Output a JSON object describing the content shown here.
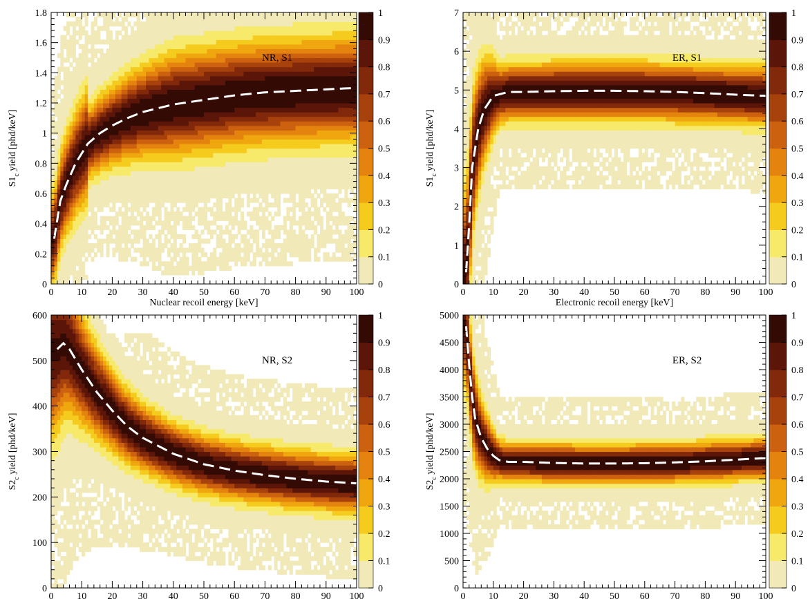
{
  "chart_data": [
    {
      "type": "heatmap",
      "annotation": "NR, S1",
      "xlabel": "Nuclear recoil energy [keV]",
      "ylabel_main": "S1",
      "ylabel_sub": "c",
      "ylabel_rest": " yield [phd/keV]",
      "xlim": [
        0,
        100
      ],
      "ylim": [
        0,
        1.8
      ],
      "xticks": [
        0,
        10,
        20,
        30,
        40,
        50,
        60,
        70,
        80,
        90,
        100
      ],
      "yticks": [
        "0",
        "0.2",
        "0.4",
        "0.6",
        "0.8",
        "1",
        "1.2",
        "1.4",
        "1.6",
        "1.8"
      ],
      "ytick_values": [
        0,
        0.2,
        0.4,
        0.6,
        0.8,
        1.0,
        1.2,
        1.4,
        1.6,
        1.8
      ],
      "colorbar_ticks": [
        "0",
        "0.1",
        "0.2",
        "0.3",
        "0.4",
        "0.5",
        "0.6",
        "0.7",
        "0.8",
        "0.9",
        "1"
      ],
      "colorbar_range": [
        0,
        1
      ],
      "band": {
        "kind": "saturating",
        "center_x": [
          1,
          3,
          5,
          8,
          12,
          16,
          20,
          25,
          30,
          40,
          50,
          60,
          70,
          80,
          90,
          100
        ],
        "center_y": [
          0.3,
          0.55,
          0.66,
          0.8,
          0.93,
          1.0,
          1.05,
          1.1,
          1.14,
          1.19,
          1.22,
          1.25,
          1.27,
          1.28,
          1.29,
          1.3
        ],
        "width_y": 0.16
      },
      "mean_curve": {
        "style": "white-dashed",
        "x": [
          1,
          3,
          5,
          8,
          12,
          16,
          20,
          25,
          30,
          40,
          50,
          60,
          70,
          80,
          90,
          100
        ],
        "y": [
          0.3,
          0.55,
          0.66,
          0.8,
          0.93,
          1.0,
          1.05,
          1.1,
          1.14,
          1.19,
          1.22,
          1.25,
          1.27,
          1.28,
          1.29,
          1.3
        ]
      }
    },
    {
      "type": "heatmap",
      "annotation": "ER, S1",
      "xlabel": "Electronic recoil energy [keV]",
      "ylabel_main": "S1",
      "ylabel_sub": "c",
      "ylabel_rest": " yield [phd/keV]",
      "xlim": [
        0,
        100
      ],
      "ylim": [
        0,
        7
      ],
      "xticks": [
        0,
        10,
        20,
        30,
        40,
        50,
        60,
        70,
        80,
        90,
        100
      ],
      "yticks": [
        "0",
        "1",
        "2",
        "3",
        "4",
        "5",
        "6",
        "7"
      ],
      "ytick_values": [
        0,
        1,
        2,
        3,
        4,
        5,
        6,
        7
      ],
      "colorbar_ticks": [
        "0",
        "0.1",
        "0.2",
        "0.3",
        "0.4",
        "0.5",
        "0.6",
        "0.7",
        "0.8",
        "0.9",
        "1"
      ],
      "colorbar_range": [
        0,
        1
      ],
      "band": {
        "kind": "flat",
        "center_x": [
          1,
          2,
          3,
          5,
          7,
          10,
          15,
          20,
          30,
          40,
          50,
          60,
          70,
          80,
          90,
          100
        ],
        "center_y": [
          0.3,
          1.5,
          3.0,
          4.0,
          4.5,
          4.85,
          4.95,
          4.95,
          4.97,
          4.98,
          4.98,
          4.97,
          4.95,
          4.92,
          4.88,
          4.85
        ],
        "width_y": 0.45
      },
      "mean_curve": {
        "style": "white-dashed",
        "x": [
          1,
          2,
          3,
          5,
          7,
          10,
          15,
          20,
          30,
          40,
          50,
          60,
          70,
          80,
          90,
          100
        ],
        "y": [
          0.3,
          1.5,
          3.0,
          4.0,
          4.5,
          4.85,
          4.95,
          4.95,
          4.97,
          4.98,
          4.98,
          4.97,
          4.95,
          4.92,
          4.88,
          4.85
        ]
      }
    },
    {
      "type": "heatmap",
      "annotation": "NR, S2",
      "xlabel": "Nuclear recoil energy [keV]",
      "ylabel_main": "S2",
      "ylabel_sub": "c",
      "ylabel_rest": " yield [phd/keV]",
      "xlim": [
        0,
        100
      ],
      "ylim": [
        0,
        600
      ],
      "xticks": [
        0,
        10,
        20,
        30,
        40,
        50,
        60,
        70,
        80,
        90,
        100
      ],
      "yticks": [
        "0",
        "100",
        "200",
        "300",
        "400",
        "500",
        "600"
      ],
      "ytick_values": [
        0,
        100,
        200,
        300,
        400,
        500,
        600
      ],
      "colorbar_ticks": [
        "0",
        "0.1",
        "0.2",
        "0.3",
        "0.4",
        "0.5",
        "0.6",
        "0.7",
        "0.8",
        "0.9",
        "1"
      ],
      "colorbar_range": [
        0,
        1
      ],
      "band": {
        "kind": "falling",
        "center_x": [
          2,
          4,
          6,
          10,
          15,
          20,
          25,
          30,
          40,
          50,
          60,
          70,
          80,
          90,
          100
        ],
        "center_y": [
          525,
          538,
          525,
          480,
          430,
          390,
          355,
          330,
          295,
          272,
          258,
          248,
          240,
          234,
          230
        ],
        "width_y": 38
      },
      "mean_curve": {
        "style": "white-dashed",
        "x": [
          2,
          4,
          6,
          10,
          15,
          20,
          25,
          30,
          40,
          50,
          60,
          70,
          80,
          90,
          100
        ],
        "y": [
          525,
          538,
          525,
          480,
          430,
          390,
          355,
          330,
          295,
          272,
          258,
          248,
          240,
          234,
          230
        ]
      }
    },
    {
      "type": "heatmap",
      "annotation": "ER, S2",
      "xlabel": "Electronic recoil energy [keV]",
      "ylabel_main": "S2",
      "ylabel_sub": "c",
      "ylabel_rest": " yield [phd/keV]",
      "xlim": [
        0,
        100
      ],
      "ylim": [
        0,
        5000
      ],
      "xticks": [
        0,
        10,
        20,
        30,
        40,
        50,
        60,
        70,
        80,
        90,
        100
      ],
      "yticks": [
        "0",
        "500",
        "1000",
        "1500",
        "2000",
        "2500",
        "3000",
        "3500",
        "4000",
        "4500",
        "5000"
      ],
      "ytick_values": [
        0,
        500,
        1000,
        1500,
        2000,
        2500,
        3000,
        3500,
        4000,
        4500,
        5000
      ],
      "colorbar_ticks": [
        "0",
        "0.1",
        "0.2",
        "0.3",
        "0.4",
        "0.5",
        "0.6",
        "0.7",
        "0.8",
        "0.9",
        "1"
      ],
      "colorbar_range": [
        0,
        1
      ],
      "band": {
        "kind": "flat",
        "center_x": [
          1,
          2,
          3,
          4,
          6,
          8,
          10,
          12,
          15,
          20,
          30,
          40,
          50,
          60,
          70,
          80,
          90,
          100
        ],
        "center_y": [
          4800,
          4100,
          3500,
          3100,
          2750,
          2550,
          2420,
          2340,
          2310,
          2310,
          2290,
          2280,
          2280,
          2285,
          2300,
          2320,
          2350,
          2380
        ],
        "width_y": 220
      },
      "mean_curve": {
        "style": "white-dashed",
        "x": [
          1,
          2,
          3,
          4,
          6,
          8,
          10,
          12,
          15,
          20,
          30,
          40,
          50,
          60,
          70,
          80,
          90,
          100
        ],
        "y": [
          4800,
          4100,
          3500,
          3100,
          2750,
          2550,
          2420,
          2340,
          2310,
          2310,
          2290,
          2280,
          2280,
          2285,
          2300,
          2320,
          2350,
          2380
        ]
      }
    }
  ],
  "colorscale": [
    "#f1eab8",
    "#f7e96a",
    "#f5cb1e",
    "#f0a60f",
    "#e4840e",
    "#cc610f",
    "#a8420c",
    "#82290b",
    "#5c1609",
    "#340a05",
    "#000000"
  ]
}
